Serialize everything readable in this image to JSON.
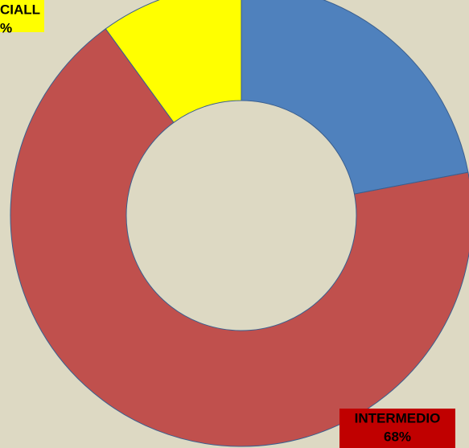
{
  "chart_data": {
    "type": "donut",
    "categories": [
      null,
      "INTERMEDIO",
      "CIALL"
    ],
    "values": [
      22,
      68,
      10
    ],
    "value_labels": [
      null,
      "68%",
      "%"
    ],
    "colors": [
      "#4f81bd",
      "#c0504d",
      "#ffff00"
    ],
    "label_backgrounds": [
      null,
      "#c00000",
      "#ffff00"
    ]
  }
}
